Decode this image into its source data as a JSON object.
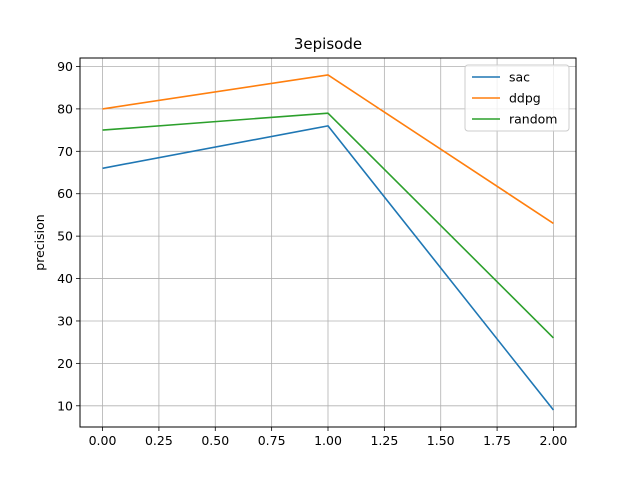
{
  "chart_data": {
    "type": "line",
    "title": "3episode",
    "xlabel": "",
    "ylabel": "precision",
    "x": [
      0,
      1,
      2
    ],
    "xlim": [
      -0.1,
      2.1
    ],
    "ylim": [
      5,
      92
    ],
    "xticks": [
      0.0,
      0.25,
      0.5,
      0.75,
      1.0,
      1.25,
      1.5,
      1.75,
      2.0
    ],
    "xtick_labels": [
      "0.00",
      "0.25",
      "0.50",
      "0.75",
      "1.00",
      "1.25",
      "1.50",
      "1.75",
      "2.00"
    ],
    "yticks": [
      10,
      20,
      30,
      40,
      50,
      60,
      70,
      80,
      90
    ],
    "ytick_labels": [
      "10",
      "20",
      "30",
      "40",
      "50",
      "60",
      "70",
      "80",
      "90"
    ],
    "grid": true,
    "legend_position": "top-right",
    "series": [
      {
        "name": "sac",
        "color": "#1f77b4",
        "values": [
          66,
          76,
          9
        ]
      },
      {
        "name": "ddpg",
        "color": "#ff7f0e",
        "values": [
          80,
          88,
          53
        ]
      },
      {
        "name": "random",
        "color": "#2ca02c",
        "values": [
          75,
          79,
          26
        ]
      }
    ]
  }
}
